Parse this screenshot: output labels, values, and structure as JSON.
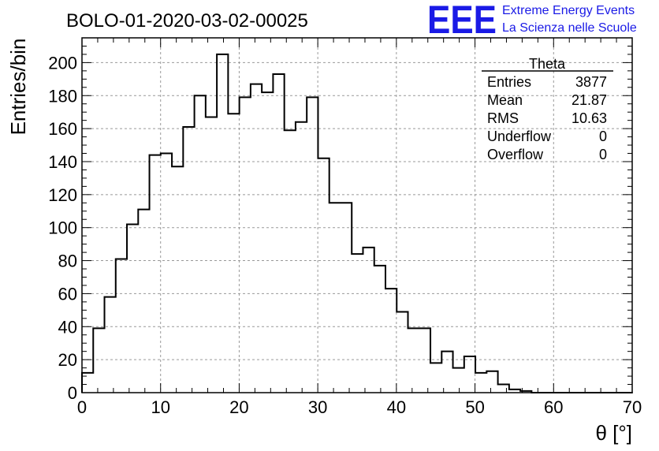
{
  "header": {
    "title": "BOLO-01-2020-03-02-00025",
    "logo_mark": "EEE",
    "logo_line1": "Extreme Energy Events",
    "logo_line2": "La Scienza nelle Scuole",
    "logo_color": "#1a1ae6"
  },
  "stats_box": {
    "title": "Theta",
    "rows": [
      {
        "label": "Entries",
        "value": "3877"
      },
      {
        "label": "Mean",
        "value": "21.87"
      },
      {
        "label": "RMS",
        "value": "10.63"
      },
      {
        "label": "Underflow",
        "value": "0"
      },
      {
        "label": "Overflow",
        "value": "0"
      }
    ]
  },
  "chart_data": {
    "type": "bar",
    "style": "step-histogram",
    "title": "BOLO-01-2020-03-02-00025",
    "xlabel": "θ [°]",
    "ylabel": "Entries/bin",
    "xlim": [
      0,
      70
    ],
    "ylim": [
      0,
      215
    ],
    "bin_width": 1.43,
    "x_ticks": [
      0,
      10,
      20,
      30,
      40,
      50,
      60,
      70
    ],
    "y_ticks": [
      0,
      20,
      40,
      60,
      80,
      100,
      120,
      140,
      160,
      180,
      200
    ],
    "grid": true,
    "line_color": "#000000",
    "values": [
      12,
      39,
      58,
      81,
      102,
      111,
      144,
      145,
      137,
      161,
      180,
      167,
      205,
      169,
      179,
      187,
      182,
      193,
      159,
      164,
      179,
      142,
      115,
      115,
      84,
      88,
      77,
      63,
      49,
      39,
      39,
      18,
      25,
      15,
      22,
      12,
      13,
      5,
      2,
      1,
      0,
      0,
      0,
      0,
      0,
      0,
      0,
      0,
      0
    ]
  }
}
